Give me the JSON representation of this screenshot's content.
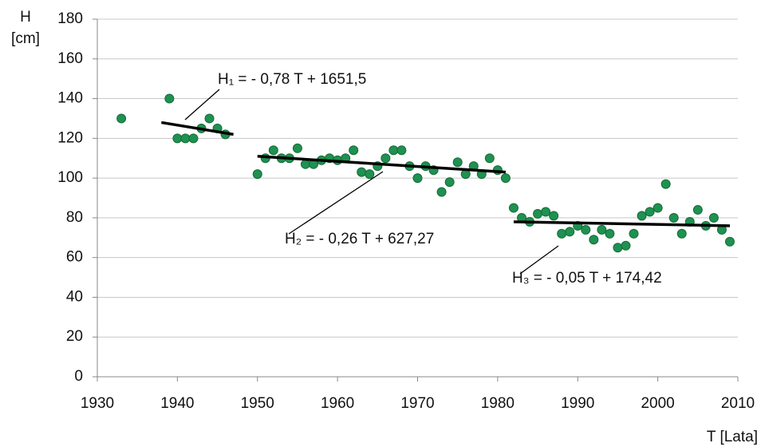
{
  "chart_data": {
    "type": "scatter",
    "ylabel": [
      "H",
      "[cm]"
    ],
    "xlabel": "T [Lata]",
    "xlim": [
      1930,
      2010
    ],
    "xticks": [
      1930,
      1940,
      1950,
      1960,
      1970,
      1980,
      1990,
      2000,
      2010
    ],
    "ylim": [
      0,
      180
    ],
    "yticks": [
      0,
      20,
      40,
      60,
      80,
      100,
      120,
      140,
      160,
      180
    ],
    "grid": true,
    "series": [
      {
        "color": "#1f9150",
        "x": [
          1933,
          1939,
          1940,
          1941,
          1942,
          1943,
          1944,
          1945,
          1946,
          1950,
          1951,
          1952,
          1953,
          1954,
          1955,
          1956,
          1957,
          1958,
          1959,
          1960,
          1961,
          1962,
          1963,
          1964,
          1965,
          1966,
          1967,
          1968,
          1969,
          1970,
          1971,
          1972,
          1973,
          1974,
          1975,
          1976,
          1977,
          1978,
          1979,
          1980,
          1981,
          1982,
          1983,
          1984,
          1985,
          1986,
          1987,
          1988,
          1989,
          1990,
          1991,
          1992,
          1993,
          1994,
          1995,
          1996,
          1997,
          1998,
          1999,
          2000,
          2001,
          2002,
          2003,
          2004,
          2005,
          2006,
          2007,
          2008,
          2009
        ],
        "values": [
          130,
          140,
          120,
          120,
          120,
          125,
          130,
          125,
          122,
          102,
          110,
          114,
          110,
          110,
          115,
          107,
          107,
          109,
          110,
          109,
          110,
          114,
          103,
          102,
          106,
          110,
          114,
          114,
          106,
          100,
          106,
          104,
          93,
          98,
          108,
          102,
          106,
          102,
          110,
          104,
          100,
          85,
          80,
          78,
          82,
          83,
          81,
          72,
          73,
          76,
          74,
          69,
          74,
          72,
          65,
          66,
          72,
          81,
          83,
          85,
          97,
          80,
          72,
          78,
          84,
          76,
          80,
          74,
          68
        ]
      }
    ],
    "trend_lines": [
      {
        "label": "H₁ = - 0,78 T + 1651,5",
        "x": [
          1938,
          1947
        ],
        "values": [
          128,
          122
        ]
      },
      {
        "label": "H₂ = - 0,26 T + 627,27",
        "x": [
          1950,
          1981
        ],
        "values": [
          111,
          103
        ]
      },
      {
        "label": "H₃ = - 0,05 T + 174,42",
        "x": [
          1982,
          2009
        ],
        "values": [
          78,
          76
        ]
      }
    ],
    "trend_color": "#000000"
  }
}
